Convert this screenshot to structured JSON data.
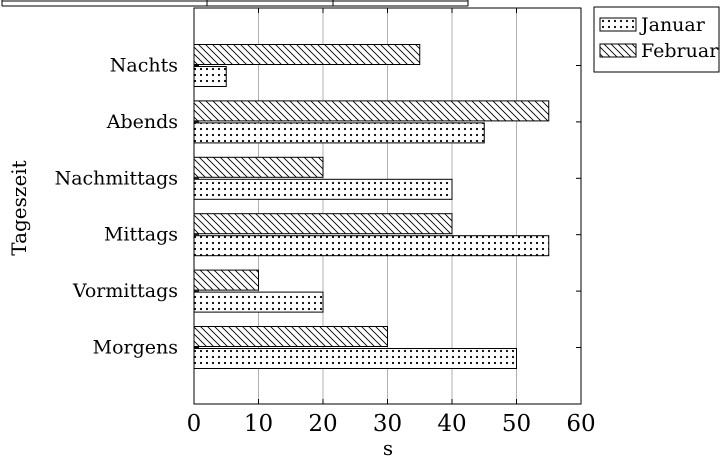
{
  "chart_data": {
    "type": "bar",
    "orientation": "horizontal",
    "categories": [
      "Morgens",
      "Vormittags",
      "Mittags",
      "Nachmittags",
      "Abends",
      "Nachts"
    ],
    "series": [
      {
        "name": "Januar",
        "pattern": "dots",
        "values": [
          50,
          20,
          55,
          40,
          45,
          5
        ]
      },
      {
        "name": "Februar",
        "pattern": "diagonal-lines",
        "values": [
          30,
          10,
          40,
          20,
          55,
          35
        ]
      }
    ],
    "xlabel": "s",
    "ylabel": "Tageszeit",
    "xlim": [
      0,
      60
    ],
    "xticks": [
      0,
      10,
      20,
      30,
      40,
      50,
      60
    ],
    "grid": "vertical",
    "legend_position": "outside-top-right",
    "colors": {
      "fill": "#ffffff",
      "stroke": "#000000",
      "grid": "#b0b0b0"
    }
  }
}
